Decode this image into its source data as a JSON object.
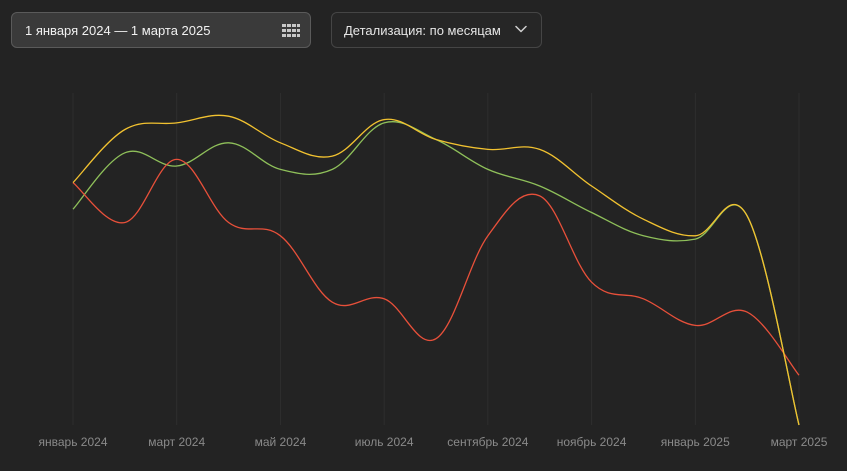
{
  "toolbar": {
    "date_range_label": "1 января 2024 — 1 марта 2025",
    "detail_label": "Детализация: по месяцам"
  },
  "icons": {
    "calendar": "calendar-icon",
    "chevron": "chevron-down-icon"
  },
  "colors": {
    "background": "#232323",
    "red": "#e8503a",
    "yellow": "#f2c230",
    "green": "#8fc05a"
  },
  "chart_data": {
    "type": "line",
    "x": [
      "2024-01",
      "2024-02",
      "2024-03",
      "2024-04",
      "2024-05",
      "2024-06",
      "2024-07",
      "2024-08",
      "2024-09",
      "2024-10",
      "2024-11",
      "2024-12",
      "2025-01",
      "2025-02",
      "2025-03"
    ],
    "x_tick_labels": [
      "январь 2024",
      "март 2024",
      "май 2024",
      "июль 2024",
      "сентябрь 2024",
      "ноябрь 2024",
      "январь 2025",
      "март 2025"
    ],
    "x_tick_positions": [
      "2024-01",
      "2024-03",
      "2024-05",
      "2024-07",
      "2024-09",
      "2024-11",
      "2025-01",
      "2025-03"
    ],
    "series": [
      {
        "color": "#e8503a",
        "values": [
          73,
          61,
          80,
          61,
          57,
          37,
          38,
          26,
          57,
          69,
          43,
          38,
          30,
          34,
          15
        ]
      },
      {
        "color": "#f2c230",
        "values": [
          73,
          89,
          91,
          93,
          85,
          81,
          92,
          86,
          83,
          83,
          72,
          62,
          57,
          63,
          0
        ]
      },
      {
        "color": "#8fc05a",
        "values": [
          65,
          82,
          78,
          85,
          77,
          77,
          91,
          86,
          77,
          72,
          64,
          57,
          56,
          63,
          0
        ]
      }
    ],
    "ylim": [
      0,
      100
    ],
    "grid": "vertical",
    "legend": "none"
  }
}
